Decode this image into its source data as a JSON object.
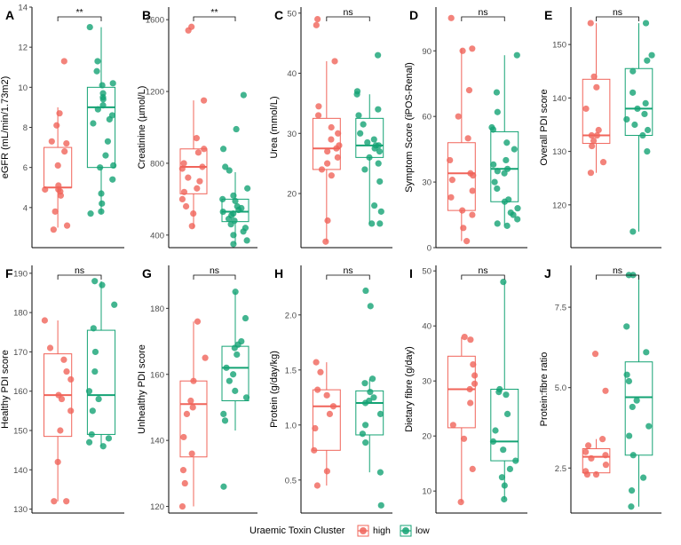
{
  "colors": {
    "high": "#F0645A",
    "low": "#14A374",
    "axis": "#000000",
    "tick_text": "#4d4d4d"
  },
  "legend": {
    "title": "Uraemic Toxin Cluster",
    "items": [
      {
        "label": "high",
        "color": "#F0645A"
      },
      {
        "label": "low",
        "color": "#14A374"
      }
    ]
  },
  "chart_data": [
    {
      "type": "box",
      "panel": "A",
      "ylabel": "eGFR (mL/min/1.73m2)",
      "ylim": [
        2,
        14
      ],
      "ticks": [
        4,
        6,
        8,
        10,
        12,
        14
      ],
      "significance": "**",
      "series": [
        {
          "name": "high",
          "box": {
            "min": 3,
            "q1": 5,
            "median": 5,
            "q3": 7,
            "max": 9
          },
          "points": [
            11.3,
            8.7,
            8.1,
            7.3,
            7.2,
            6.8,
            6.1,
            5.1,
            4.9,
            4.9,
            4.8,
            4.6,
            3.8,
            3.1,
            2.9
          ]
        },
        {
          "name": "low",
          "box": {
            "min": 3.7,
            "q1": 6,
            "median": 9,
            "q3": 10,
            "max": 13
          },
          "points": [
            13,
            11.3,
            10.8,
            10.2,
            10.1,
            9.7,
            9.5,
            9.4,
            9.1,
            8.9,
            8.6,
            8.4,
            8.2,
            7.3,
            6.6,
            6.1,
            6.0,
            5.4,
            4.7,
            4.2,
            3.8,
            3.7
          ]
        }
      ]
    },
    {
      "type": "box",
      "panel": "B",
      "ylabel": "Creatinine (µmol/L)",
      "ylim": [
        330,
        1670
      ],
      "ticks": [
        400,
        800,
        1200,
        1600
      ],
      "significance": "**",
      "series": [
        {
          "name": "high",
          "box": {
            "min": 440,
            "q1": 630,
            "median": 780,
            "q3": 880,
            "max": 1150
          },
          "points": [
            1560,
            1540,
            1150,
            940,
            880,
            860,
            800,
            780,
            770,
            720,
            700,
            660,
            640,
            600,
            560,
            520,
            450
          ]
        },
        {
          "name": "low",
          "box": {
            "min": 350,
            "q1": 475,
            "median": 530,
            "q3": 600,
            "max": 750
          },
          "points": [
            1180,
            990,
            880,
            780,
            760,
            660,
            620,
            600,
            590,
            560,
            550,
            540,
            530,
            520,
            510,
            490,
            480,
            460,
            440,
            420,
            400,
            370,
            350
          ]
        }
      ]
    },
    {
      "type": "box",
      "panel": "C",
      "ylabel": "Urea (mmol/L)",
      "ylim": [
        11,
        51
      ],
      "ticks": [
        20,
        30,
        40,
        50
      ],
      "significance": "ns",
      "series": [
        {
          "name": "high",
          "box": {
            "min": 12,
            "q1": 24,
            "median": 27.5,
            "q3": 32.5,
            "max": 42
          },
          "points": [
            49,
            48,
            42,
            34.5,
            33,
            31,
            30,
            29,
            28,
            27.5,
            27,
            26,
            25,
            24,
            23,
            15.5,
            12
          ]
        },
        {
          "name": "low",
          "box": {
            "min": 15,
            "q1": 26,
            "median": 28,
            "q3": 32.5,
            "max": 36.5
          },
          "points": [
            43,
            37,
            36.5,
            34,
            33,
            31.5,
            30,
            29,
            28.5,
            28,
            28,
            27.5,
            27,
            26,
            25,
            24,
            22,
            18,
            17,
            15,
            15
          ]
        }
      ]
    },
    {
      "type": "box",
      "panel": "D",
      "ylabel": "Symptom Score (iPOS-Renal)",
      "ylim": [
        0,
        110
      ],
      "ticks": [
        0,
        30,
        60,
        90
      ],
      "significance": "ns",
      "series": [
        {
          "name": "high",
          "box": {
            "min": 3,
            "q1": 17,
            "median": 34,
            "q3": 48,
            "max": 91
          },
          "points": [
            105,
            91,
            90,
            72,
            60,
            50,
            40,
            34,
            33,
            31,
            26,
            23,
            17,
            15,
            9,
            3
          ]
        },
        {
          "name": "low",
          "box": {
            "min": 10,
            "q1": 21,
            "median": 36,
            "q3": 53,
            "max": 88
          },
          "points": [
            88,
            71,
            62,
            55,
            54,
            48,
            45,
            40,
            38,
            36,
            35,
            34,
            30,
            27,
            22,
            21,
            18,
            16,
            15,
            13,
            11,
            10
          ]
        }
      ]
    },
    {
      "type": "box",
      "panel": "E",
      "ylabel": "Overall PDI score",
      "ylim": [
        112,
        157
      ],
      "ticks": [
        120,
        130,
        140,
        150
      ],
      "significance": "ns",
      "series": [
        {
          "name": "high",
          "box": {
            "min": 126,
            "q1": 131.5,
            "median": 133,
            "q3": 143.5,
            "max": 154
          },
          "points": [
            154,
            144,
            142,
            138,
            134,
            133,
            133,
            132,
            131,
            128,
            126
          ]
        },
        {
          "name": "low",
          "box": {
            "min": 115,
            "q1": 133,
            "median": 138,
            "q3": 145.5,
            "max": 154
          },
          "points": [
            154,
            148,
            147,
            145,
            141,
            139,
            138,
            137,
            136,
            135,
            134,
            133,
            130,
            115
          ]
        }
      ]
    },
    {
      "type": "box",
      "panel": "F",
      "ylabel": "Healthy PDI score",
      "ylim": [
        129,
        192
      ],
      "ticks": [
        130,
        140,
        150,
        160,
        170,
        180,
        190
      ],
      "significance": "ns",
      "series": [
        {
          "name": "high",
          "box": {
            "min": 132,
            "q1": 148.5,
            "median": 159,
            "q3": 169.5,
            "max": 178
          },
          "points": [
            178,
            171,
            168,
            165,
            163,
            159,
            158,
            155,
            150,
            142,
            132,
            132
          ]
        },
        {
          "name": "low",
          "box": {
            "min": 146,
            "q1": 149,
            "median": 159,
            "q3": 175.5,
            "max": 188
          },
          "points": [
            188,
            187,
            182,
            176,
            170,
            165,
            160,
            158,
            155,
            149,
            148,
            147,
            146
          ]
        }
      ]
    },
    {
      "type": "box",
      "panel": "G",
      "ylabel": "Unhealthy PDI score",
      "ylim": [
        118,
        193
      ],
      "ticks": [
        120,
        140,
        160,
        180
      ],
      "significance": "ns",
      "series": [
        {
          "name": "high",
          "box": {
            "min": 120,
            "q1": 135,
            "median": 151,
            "q3": 158,
            "max": 176
          },
          "points": [
            176,
            165,
            158,
            152,
            150,
            148,
            141,
            136,
            131,
            127,
            120
          ]
        },
        {
          "name": "low",
          "box": {
            "min": 143,
            "q1": 152,
            "median": 162,
            "q3": 168.5,
            "max": 185
          },
          "points": [
            185,
            177,
            170,
            169,
            168,
            166,
            162,
            160,
            158,
            155,
            153,
            148,
            146,
            126
          ]
        }
      ]
    },
    {
      "type": "box",
      "panel": "H",
      "ylabel": "Protein (g/day/kg)",
      "ylim": [
        0.2,
        2.45
      ],
      "ticks": [
        0.5,
        1.0,
        1.5,
        2.0
      ],
      "significance": "ns",
      "series": [
        {
          "name": "high",
          "box": {
            "min": 0.45,
            "q1": 0.77,
            "median": 1.17,
            "q3": 1.32,
            "max": 1.57
          },
          "points": [
            1.57,
            1.48,
            1.32,
            1.27,
            1.17,
            1.1,
            0.97,
            0.77,
            0.58,
            0.45
          ]
        },
        {
          "name": "low",
          "box": {
            "min": 0.57,
            "q1": 0.91,
            "median": 1.2,
            "q3": 1.31,
            "max": 1.42
          },
          "points": [
            2.22,
            2.08,
            1.42,
            1.38,
            1.3,
            1.25,
            1.22,
            1.2,
            1.1,
            1.0,
            0.92,
            0.84,
            0.57,
            0.27
          ]
        }
      ]
    },
    {
      "type": "box",
      "panel": "I",
      "ylabel": "Dietary fibre (g/day)",
      "ylim": [
        6,
        51
      ],
      "ticks": [
        10,
        20,
        30,
        40,
        50
      ],
      "significance": "ns",
      "series": [
        {
          "name": "high",
          "box": {
            "min": 8,
            "q1": 21.5,
            "median": 28.5,
            "q3": 34.5,
            "max": 38
          },
          "points": [
            38,
            37.5,
            33,
            31,
            29.5,
            28.5,
            26,
            22,
            19.5,
            14,
            8
          ]
        },
        {
          "name": "low",
          "box": {
            "min": 8.5,
            "q1": 15.5,
            "median": 19,
            "q3": 28.5,
            "max": 48
          },
          "points": [
            48,
            28.5,
            28,
            27.5,
            24,
            21,
            19,
            17.5,
            15.5,
            14,
            12.5,
            11,
            8.5
          ]
        }
      ]
    },
    {
      "type": "box",
      "panel": "J",
      "ylabel": "Protein:fibre ratio",
      "ylim": [
        1.1,
        8.8
      ],
      "ticks": [
        2.5,
        5.0,
        7.5
      ],
      "significance": "ns",
      "series": [
        {
          "name": "high",
          "box": {
            "min": 2.3,
            "q1": 2.35,
            "median": 2.85,
            "q3": 3.1,
            "max": 3.4
          },
          "points": [
            6.05,
            4.9,
            3.4,
            3.2,
            3.0,
            2.9,
            2.8,
            2.6,
            2.4,
            2.3,
            2.3
          ]
        },
        {
          "name": "low",
          "box": {
            "min": 1.3,
            "q1": 2.9,
            "median": 4.7,
            "q3": 5.8,
            "max": 8.5
          },
          "points": [
            8.5,
            8.5,
            6.9,
            6.1,
            5.4,
            5.2,
            4.6,
            4.4,
            3.8,
            3.5,
            2.9,
            2.2,
            1.8,
            1.3
          ]
        }
      ]
    }
  ]
}
